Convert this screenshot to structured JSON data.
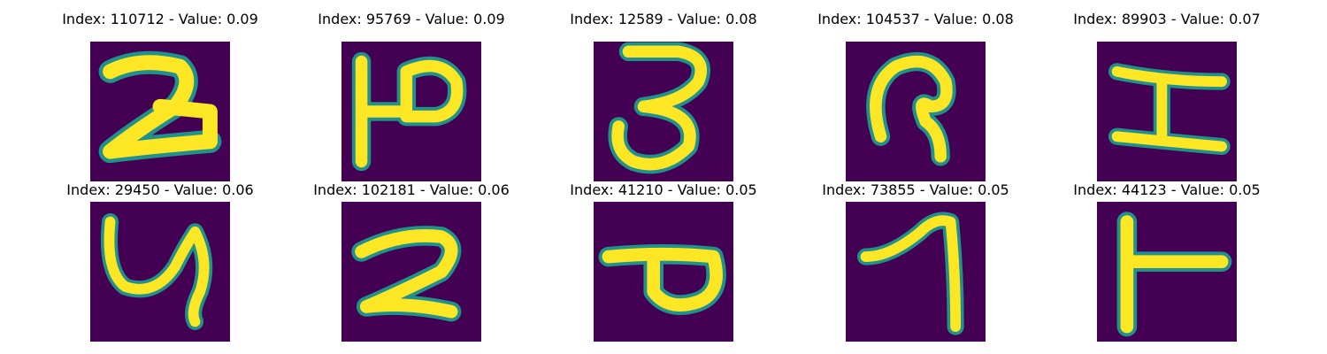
{
  "colors": {
    "background": "#440154",
    "stroke": "#fde725",
    "edge": "#21918c"
  },
  "panels": [
    {
      "title": "Index: 110712 - Value: 0.09",
      "glyph": "handwritten-digit-2-style-glyph"
    },
    {
      "title": "Index: 95769 - Value: 0.09",
      "glyph": "handwritten-p-like-glyph"
    },
    {
      "title": "Index: 12589 - Value: 0.08",
      "glyph": "handwritten-3-like-glyph"
    },
    {
      "title": "Index: 104537 - Value: 0.08",
      "glyph": "handwritten-loop-glyph"
    },
    {
      "title": "Index: 89903 - Value: 0.07",
      "glyph": "handwritten-i-beam-glyph"
    },
    {
      "title": "Index: 29450 - Value: 0.06",
      "glyph": "handwritten-y-like-glyph"
    },
    {
      "title": "Index: 102181 - Value: 0.06",
      "glyph": "handwritten-digit-2-style-glyph"
    },
    {
      "title": "Index: 41210 - Value: 0.05",
      "glyph": "handwritten-loop-tail-glyph"
    },
    {
      "title": "Index: 73855 - Value: 0.05",
      "glyph": "handwritten-7-like-glyph"
    },
    {
      "title": "Index: 44123 - Value: 0.05",
      "glyph": "handwritten-t-like-glyph"
    }
  ]
}
